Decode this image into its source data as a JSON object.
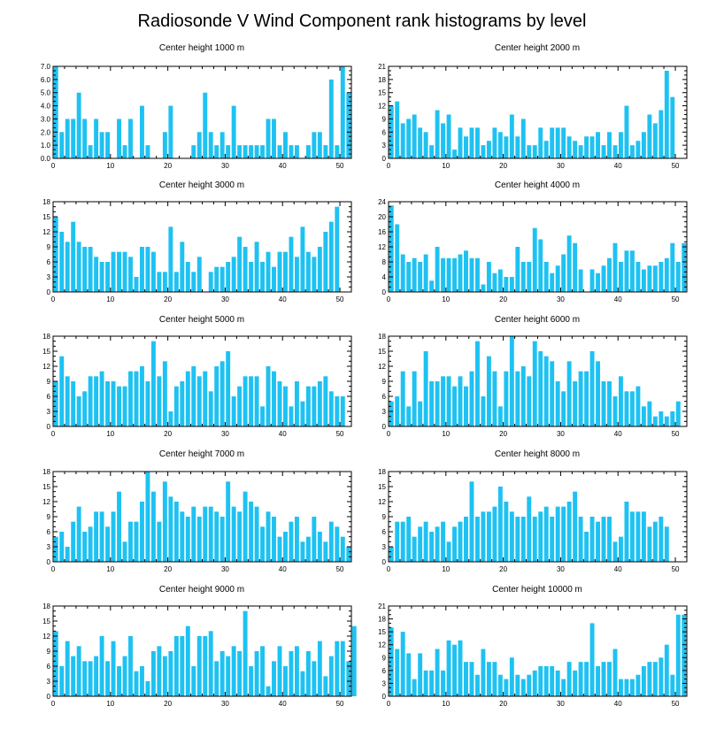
{
  "figure": {
    "title": "Radiosonde V Wind Component rank histograms by level",
    "bar_color": "#1ec2f2"
  },
  "chart_data": [
    {
      "type": "bar",
      "title": "Center height 1000 m",
      "xlim": [
        0,
        52
      ],
      "ylim": [
        0,
        7
      ],
      "xticks": [
        0,
        10,
        20,
        30,
        40,
        50
      ],
      "yticks": [
        "0.0",
        "1.0",
        "2.0",
        "3.0",
        "4.0",
        "5.0",
        "6.0",
        "7.0"
      ],
      "values": [
        7,
        2,
        3,
        3,
        5,
        3,
        1,
        3,
        2,
        2,
        0,
        3,
        1,
        3,
        0,
        4,
        1,
        0,
        0,
        2,
        4,
        0,
        0,
        0,
        1,
        2,
        5,
        2,
        1,
        2,
        1,
        4,
        1,
        1,
        1,
        1,
        1,
        3,
        3,
        1,
        2,
        1,
        1,
        0,
        1,
        2,
        2,
        1,
        6,
        1,
        7,
        5
      ]
    },
    {
      "type": "bar",
      "title": "Center height 2000 m",
      "xlim": [
        0,
        52
      ],
      "ylim": [
        0,
        21
      ],
      "xticks": [
        0,
        10,
        20,
        30,
        40,
        50
      ],
      "yticks": [
        "0",
        "3",
        "6",
        "9",
        "12",
        "15",
        "18",
        "21"
      ],
      "values": [
        12,
        13,
        8,
        9,
        10,
        7,
        6,
        3,
        11,
        8,
        10,
        2,
        7,
        5,
        7,
        7,
        3,
        4,
        7,
        6,
        5,
        10,
        5,
        9,
        3,
        3,
        7,
        4,
        7,
        7,
        7,
        5,
        4,
        3,
        5,
        5,
        6,
        3,
        6,
        3,
        6,
        12,
        3,
        4,
        6,
        10,
        8,
        11,
        20,
        14
      ]
    },
    {
      "type": "bar",
      "title": "Center height 3000 m",
      "xlim": [
        0,
        52
      ],
      "ylim": [
        0,
        18
      ],
      "xticks": [
        0,
        10,
        20,
        30,
        40,
        50
      ],
      "yticks": [
        "0",
        "3",
        "6",
        "9",
        "12",
        "15",
        "18"
      ],
      "values": [
        15,
        12,
        10,
        14,
        10,
        9,
        9,
        7,
        6,
        6,
        8,
        8,
        8,
        7,
        3,
        9,
        9,
        8,
        4,
        4,
        13,
        4,
        10,
        6,
        4,
        7,
        0,
        4,
        5,
        5,
        6,
        7,
        11,
        9,
        6,
        10,
        6,
        8,
        5,
        8,
        8,
        11,
        7,
        13,
        8,
        7,
        9,
        12,
        14,
        17
      ]
    },
    {
      "type": "bar",
      "title": "Center height 4000 m",
      "xlim": [
        0,
        52
      ],
      "ylim": [
        0,
        24
      ],
      "xticks": [
        0,
        10,
        20,
        30,
        40,
        50
      ],
      "yticks": [
        "0",
        "4",
        "8",
        "12",
        "16",
        "20",
        "24"
      ],
      "values": [
        23,
        18,
        10,
        8,
        9,
        8,
        10,
        3,
        12,
        9,
        9,
        9,
        10,
        11,
        9,
        9,
        2,
        8,
        5,
        6,
        4,
        4,
        12,
        8,
        8,
        17,
        14,
        8,
        5,
        7,
        10,
        15,
        13,
        6,
        0,
        6,
        5,
        7,
        9,
        13,
        8,
        11,
        11,
        8,
        6,
        7,
        7,
        8,
        9,
        13,
        8,
        13
      ]
    },
    {
      "type": "bar",
      "title": "Center height 5000 m",
      "xlim": [
        0,
        52
      ],
      "ylim": [
        0,
        18
      ],
      "xticks": [
        0,
        10,
        20,
        30,
        40,
        50
      ],
      "yticks": [
        "0",
        "3",
        "6",
        "9",
        "12",
        "15",
        "18"
      ],
      "values": [
        9,
        14,
        10,
        9,
        6,
        7,
        10,
        10,
        11,
        9,
        9,
        8,
        8,
        11,
        11,
        12,
        9,
        17,
        10,
        13,
        3,
        8,
        9,
        11,
        12,
        10,
        11,
        7,
        12,
        13,
        15,
        6,
        8,
        10,
        10,
        10,
        4,
        12,
        11,
        9,
        8,
        4,
        9,
        5,
        8,
        8,
        9,
        10,
        7,
        6,
        6
      ]
    },
    {
      "type": "bar",
      "title": "Center height 6000 m",
      "xlim": [
        0,
        52
      ],
      "ylim": [
        0,
        18
      ],
      "xticks": [
        0,
        10,
        20,
        30,
        40,
        50
      ],
      "yticks": [
        "0",
        "3",
        "6",
        "9",
        "12",
        "15",
        "18"
      ],
      "values": [
        5,
        6,
        11,
        4,
        11,
        5,
        15,
        9,
        9,
        10,
        10,
        8,
        10,
        8,
        11,
        17,
        6,
        14,
        11,
        4,
        11,
        18,
        11,
        12,
        10,
        17,
        15,
        14,
        13,
        9,
        7,
        13,
        9,
        11,
        11,
        15,
        13,
        9,
        9,
        6,
        10,
        7,
        7,
        8,
        4,
        5,
        2,
        3,
        2,
        3,
        5
      ]
    },
    {
      "type": "bar",
      "title": "Center height 7000 m",
      "xlim": [
        0,
        52
      ],
      "ylim": [
        0,
        18
      ],
      "xticks": [
        0,
        10,
        20,
        30,
        40,
        50
      ],
      "yticks": [
        "0",
        "3",
        "6",
        "9",
        "12",
        "15",
        "18"
      ],
      "values": [
        5,
        6,
        3,
        8,
        11,
        6,
        7,
        10,
        10,
        7,
        10,
        14,
        4,
        8,
        8,
        12,
        18,
        14,
        8,
        16,
        13,
        12,
        10,
        9,
        11,
        9,
        11,
        11,
        10,
        9,
        16,
        11,
        10,
        14,
        12,
        11,
        7,
        10,
        9,
        5,
        6,
        8,
        9,
        4,
        5,
        9,
        6,
        4,
        8,
        7,
        5,
        3
      ]
    },
    {
      "type": "bar",
      "title": "Center height 8000 m",
      "xlim": [
        0,
        52
      ],
      "ylim": [
        0,
        18
      ],
      "xticks": [
        0,
        10,
        20,
        30,
        40,
        50
      ],
      "yticks": [
        "0",
        "3",
        "6",
        "9",
        "12",
        "15",
        "18"
      ],
      "values": [
        3,
        8,
        8,
        9,
        5,
        7,
        8,
        6,
        7,
        8,
        4,
        7,
        8,
        9,
        16,
        9,
        10,
        10,
        11,
        15,
        12,
        10,
        9,
        9,
        13,
        9,
        10,
        11,
        9,
        11,
        11,
        12,
        14,
        9,
        6,
        9,
        8,
        9,
        9,
        4,
        5,
        12,
        10,
        10,
        10,
        7,
        8,
        9,
        7
      ]
    },
    {
      "type": "bar",
      "title": "Center height 9000 m",
      "xlim": [
        0,
        52
      ],
      "ylim": [
        0,
        18
      ],
      "xticks": [
        0,
        10,
        20,
        30,
        40,
        50
      ],
      "yticks": [
        "0",
        "3",
        "6",
        "9",
        "12",
        "15",
        "18"
      ],
      "values": [
        13,
        6,
        11,
        8,
        10,
        7,
        7,
        8,
        12,
        7,
        11,
        6,
        8,
        12,
        5,
        6,
        3,
        9,
        10,
        8,
        9,
        12,
        12,
        14,
        6,
        12,
        12,
        13,
        7,
        9,
        8,
        10,
        9,
        17,
        6,
        9,
        10,
        2,
        7,
        10,
        6,
        9,
        10,
        5,
        9,
        7,
        11,
        4,
        8,
        11,
        11,
        7,
        14
      ]
    },
    {
      "type": "bar",
      "title": "Center height 10000 m",
      "xlim": [
        0,
        52
      ],
      "ylim": [
        0,
        21
      ],
      "xticks": [
        0,
        10,
        20,
        30,
        40,
        50
      ],
      "yticks": [
        "0",
        "3",
        "6",
        "9",
        "12",
        "15",
        "18",
        "21"
      ],
      "values": [
        16,
        11,
        15,
        10,
        4,
        10,
        6,
        6,
        11,
        6,
        13,
        12,
        13,
        8,
        8,
        5,
        11,
        8,
        8,
        5,
        4,
        9,
        5,
        4,
        5,
        6,
        7,
        7,
        7,
        6,
        4,
        8,
        6,
        8,
        8,
        17,
        7,
        8,
        8,
        11,
        4,
        4,
        4,
        5,
        7,
        8,
        8,
        9,
        12,
        5,
        19,
        19
      ]
    }
  ]
}
